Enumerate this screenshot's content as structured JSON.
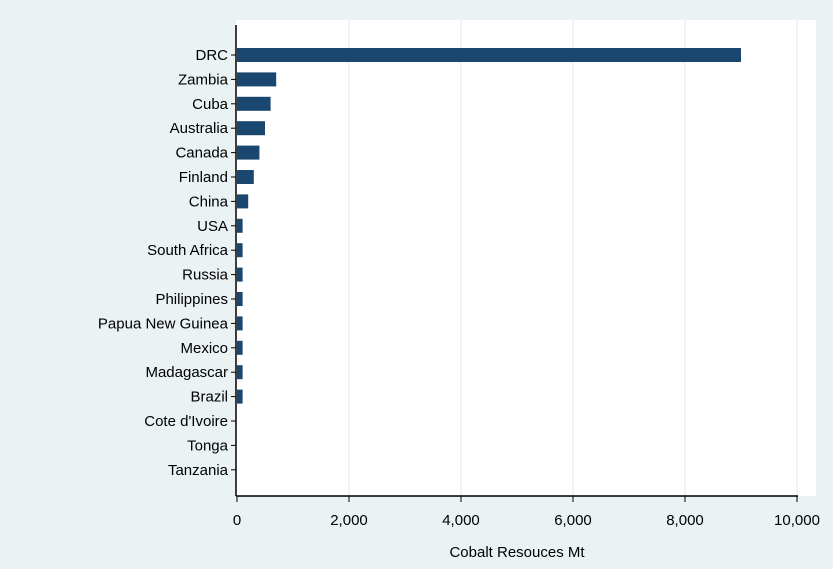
{
  "colors": {
    "outer_background": "#eaf2f3",
    "plot_background": "#ffffff",
    "bar": "#1a476f",
    "axis": "#000000",
    "grid": "#dfe8ea",
    "text": "#000000"
  },
  "chart_data": {
    "type": "bar",
    "orientation": "horizontal",
    "title": "",
    "xlabel": "Cobalt Resouces Mt",
    "ylabel": "",
    "categories": [
      "DRC",
      "Zambia",
      "Cuba",
      "Australia",
      "Canada",
      "Finland",
      "China",
      "USA",
      "South Africa",
      "Russia",
      "Philippines",
      "Papua New Guinea",
      "Mexico",
      "Madagascar",
      "Brazil",
      "Cote d'Ivoire",
      "Tonga",
      "Tanzania"
    ],
    "values": [
      9000,
      700,
      600,
      500,
      400,
      300,
      200,
      100,
      100,
      100,
      100,
      100,
      100,
      100,
      100,
      0,
      0,
      0
    ],
    "xlim": [
      0,
      10000
    ],
    "xticks": [
      0,
      2000,
      4000,
      6000,
      8000,
      10000
    ],
    "xtick_labels": [
      "0",
      "2,000",
      "4,000",
      "6,000",
      "8,000",
      "10,000"
    ],
    "grid": true,
    "legend": "none"
  }
}
